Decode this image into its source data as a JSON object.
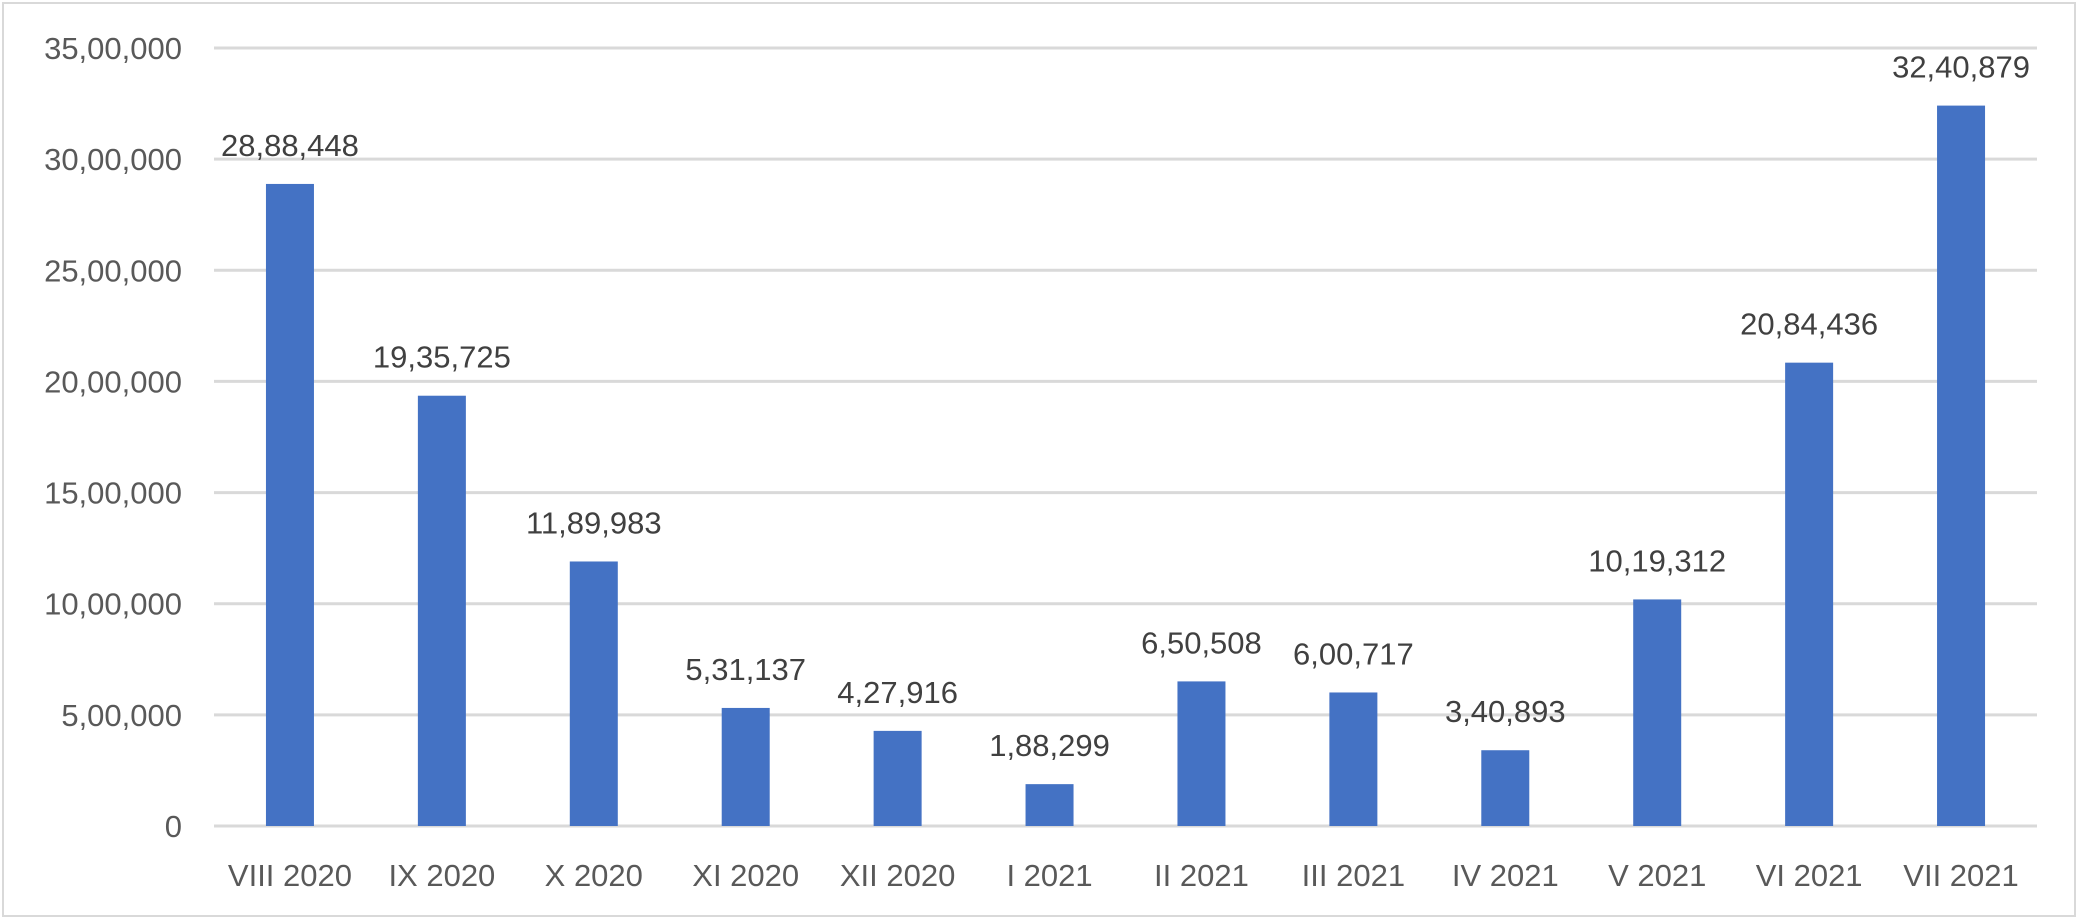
{
  "chart_data": {
    "type": "bar",
    "categories": [
      "VIII 2020",
      "IX 2020",
      "X 2020",
      "XI 2020",
      "XII 2020",
      "I 2021",
      "II 2021",
      "III 2021",
      "IV 2021",
      "V 2021",
      "VI 2021",
      "VII 2021"
    ],
    "values": [
      2888448,
      1935725,
      1189983,
      531137,
      427916,
      188299,
      650508,
      600717,
      340893,
      1019312,
      2084436,
      3240879
    ],
    "data_labels": [
      "28,88,448",
      "19,35,725",
      "11,89,983",
      "5,31,137",
      "4,27,916",
      "1,88,299",
      "6,50,508",
      "6,00,717",
      "3,40,893",
      "10,19,312",
      "20,84,436",
      "32,40,879"
    ],
    "y_ticks": [
      0,
      500000,
      1000000,
      1500000,
      2000000,
      2500000,
      3000000,
      3500000
    ],
    "y_tick_labels": [
      "0",
      "5,00,000",
      "10,00,000",
      "15,00,000",
      "20,00,000",
      "25,00,000",
      "30,00,000",
      "35,00,000"
    ],
    "ylim": [
      0,
      3500000
    ],
    "title": "",
    "xlabel": "",
    "ylabel": "",
    "grid": true,
    "legend": "none",
    "bar_color": "#4472c4"
  }
}
